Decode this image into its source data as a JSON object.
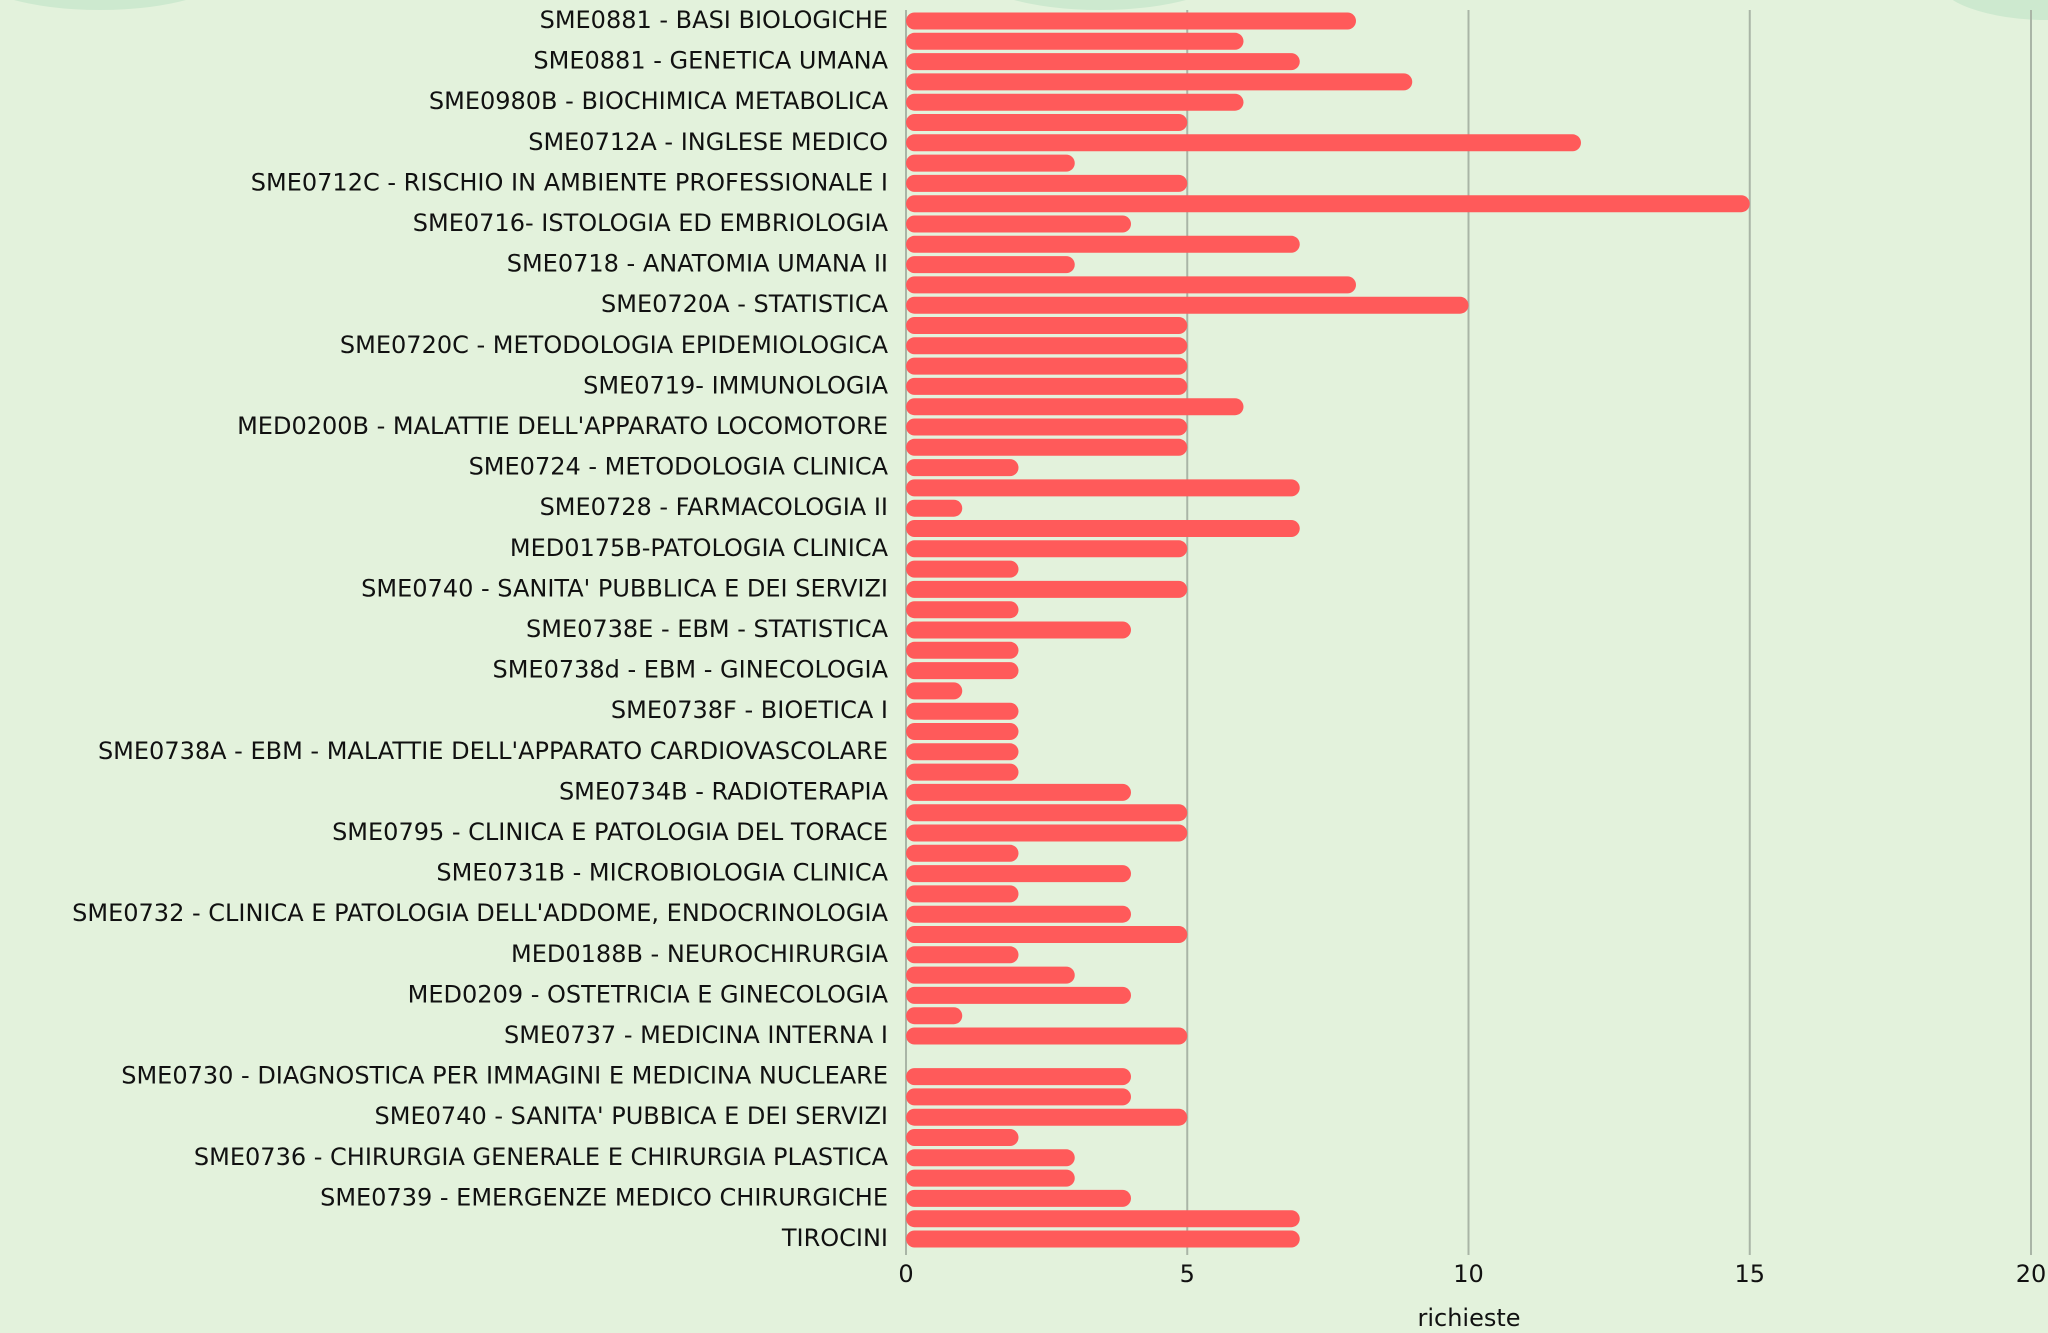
{
  "chart_data": {
    "type": "barh",
    "categories": [
      "SME0881 - BASI BIOLOGICHE",
      null,
      "SME0881 - GENETICA UMANA",
      null,
      "SME0980B - BIOCHIMICA METABOLICA",
      null,
      "SME0712A - INGLESE MEDICO",
      null,
      "SME0712C - RISCHIO IN AMBIENTE PROFESSIONALE I",
      null,
      "SME0716- ISTOLOGIA ED EMBRIOLOGIA",
      null,
      "SME0718 - ANATOMIA UMANA II",
      null,
      "SME0720A - STATISTICA",
      null,
      "SME0720C - METODOLOGIA EPIDEMIOLOGICA",
      null,
      "SME0719- IMMUNOLOGIA",
      null,
      "MED0200B - MALATTIE DELL'APPARATO LOCOMOTORE",
      null,
      "SME0724 - METODOLOGIA CLINICA",
      null,
      "SME0728 - FARMACOLOGIA II",
      null,
      "MED0175B-PATOLOGIA CLINICA",
      null,
      "SME0740 - SANITA' PUBBLICA E DEI SERVIZI",
      null,
      "SME0738E - EBM - STATISTICA",
      null,
      "SME0738d - EBM - GINECOLOGIA",
      null,
      "SME0738F - BIOETICA I",
      null,
      "SME0738A - EBM - MALATTIE DELL'APPARATO CARDIOVASCOLARE",
      null,
      "SME0734B - RADIOTERAPIA",
      null,
      "SME0795 - CLINICA E PATOLOGIA DEL TORACE",
      null,
      "SME0731B - MICROBIOLOGIA CLINICA",
      null,
      "SME0732 - CLINICA E PATOLOGIA DELL'ADDOME, ENDOCRINOLOGIA",
      null,
      "MED0188B - NEUROCHIRURGIA",
      null,
      "MED0209 - OSTETRICIA E GINECOLOGIA",
      null,
      "SME0737 - MEDICINA INTERNA I",
      null,
      "SME0730 - DIAGNOSTICA PER IMMAGINI E MEDICINA NUCLEARE",
      null,
      "SME0740 - SANITA' PUBBICA E DEI SERVIZI",
      null,
      "SME0736 - CHIRURGIA GENERALE E CHIRURGIA PLASTICA",
      null,
      "SME0739 - EMERGENZE MEDICO CHIRURGICHE",
      null,
      "TIROCINI"
    ],
    "values": [
      8,
      6,
      7,
      9,
      6,
      5,
      12,
      3,
      5,
      15,
      4,
      7,
      3,
      8,
      10,
      5,
      5,
      5,
      5,
      6,
      5,
      5,
      2,
      7,
      1,
      7,
      5,
      2,
      5,
      2,
      4,
      2,
      2,
      1,
      2,
      2,
      2,
      2,
      4,
      5,
      5,
      2,
      4,
      2,
      4,
      5,
      2,
      3,
      4,
      1,
      5,
      0,
      4,
      4,
      5,
      2,
      3,
      3,
      4,
      7,
      7
    ],
    "color": "#ff5a5a",
    "xlabel": "richieste",
    "xlim": [
      0,
      20
    ],
    "xticks": [
      0,
      5,
      10,
      15,
      20
    ],
    "grid": true
  }
}
